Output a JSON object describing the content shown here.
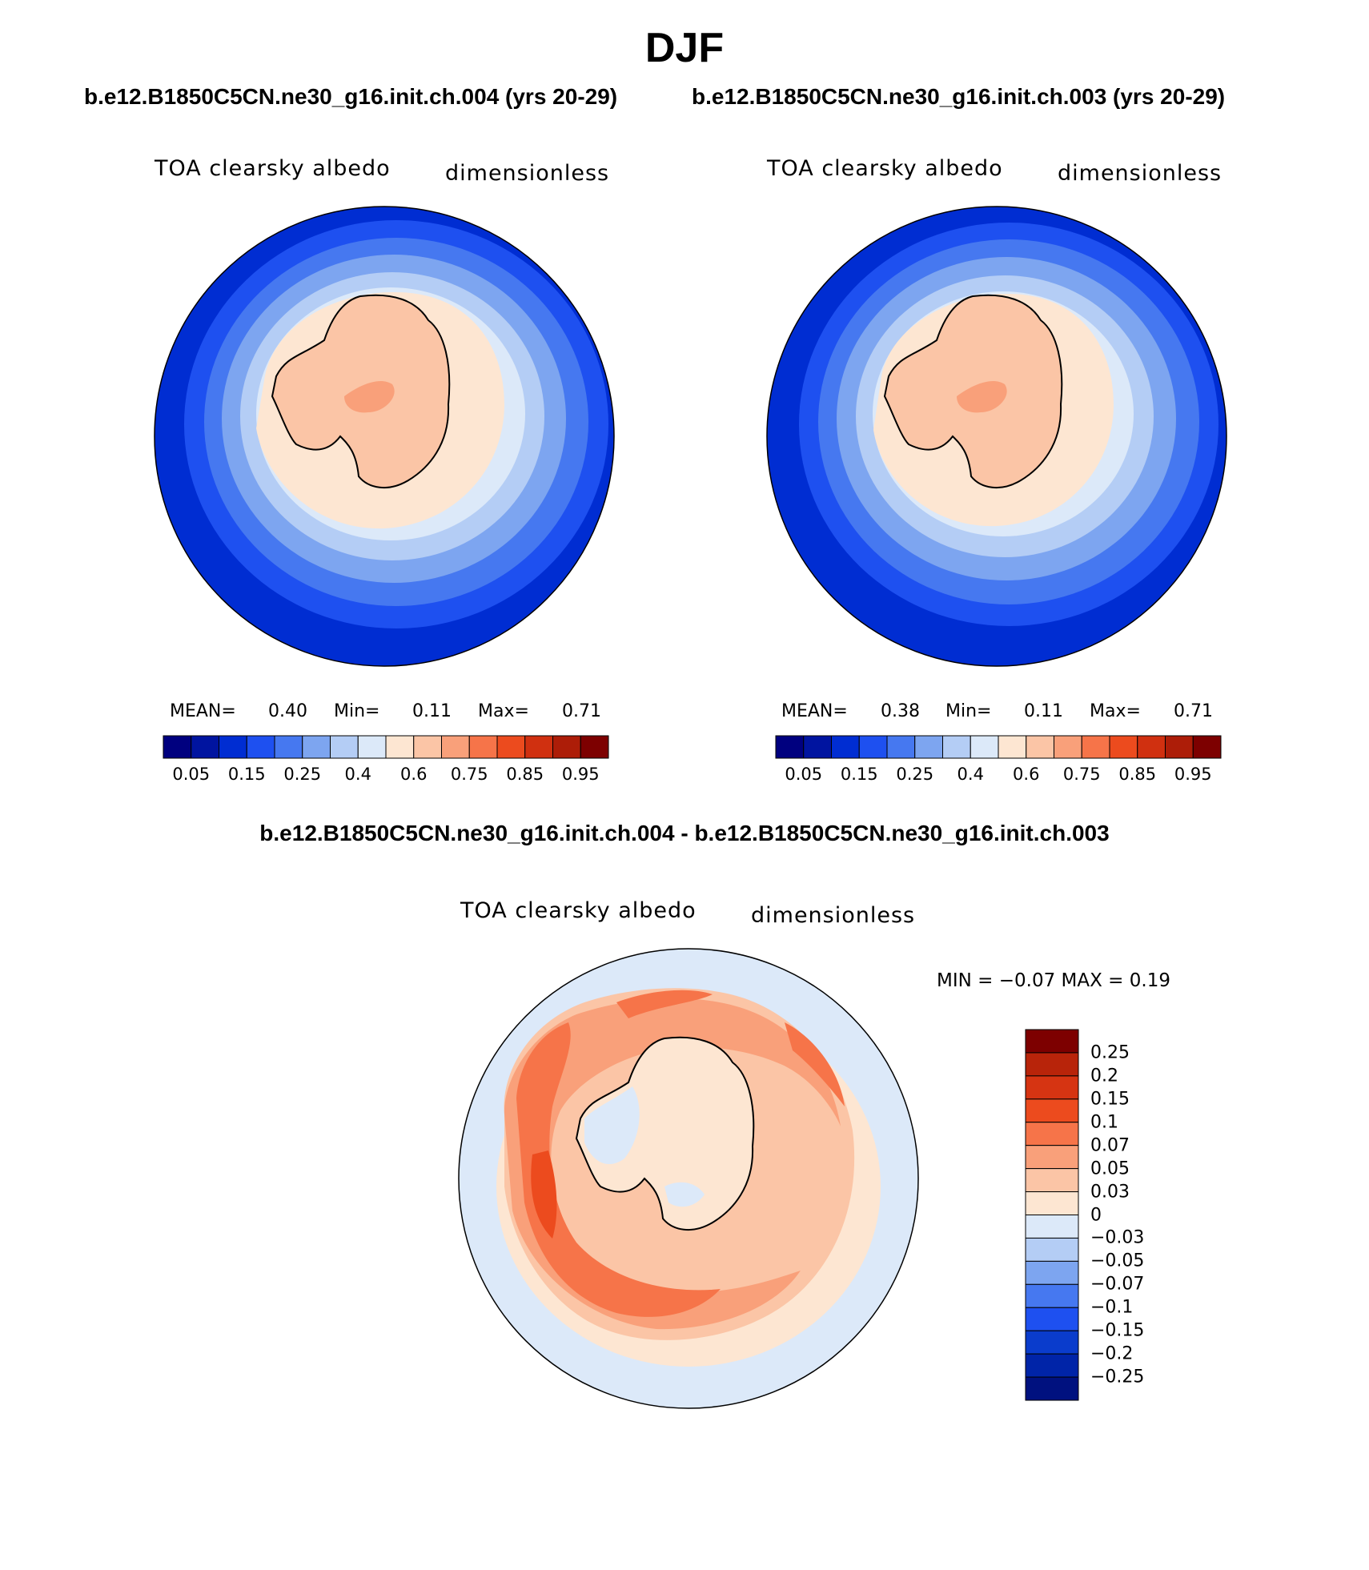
{
  "title": "DJF",
  "panels": [
    {
      "case": "b.e12.B1850C5CN.ne30_g16.init.ch.004 (yrs 20-29)",
      "variable": "TOA clearsky albedo",
      "units": "dimensionless",
      "stats": {
        "mean_label": "MEAN=",
        "mean": "0.40",
        "min_label": "Min=",
        "min": "0.11",
        "max_label": "Max=",
        "max": "0.71"
      }
    },
    {
      "case": "b.e12.B1850C5CN.ne30_g16.init.ch.003 (yrs 20-29)",
      "variable": "TOA clearsky albedo",
      "units": "dimensionless",
      "stats": {
        "mean_label": "MEAN=",
        "mean": "0.38",
        "min_label": "Min=",
        "min": "0.11",
        "max_label": "Max=",
        "max": "0.71"
      }
    }
  ],
  "difference": {
    "title": "b.e12.B1850C5CN.ne30_g16.init.ch.004 - b.e12.B1850C5CN.ne30_g16.init.ch.003",
    "variable": "TOA clearsky albedo",
    "units": "dimensionless",
    "minmax": "MIN =   −0.07  MAX =     0.19"
  },
  "colorbar_main": {
    "colors": [
      "#00007f",
      "#0014a0",
      "#002dd2",
      "#1e50f0",
      "#4678f0",
      "#7da5f0",
      "#b4cdf5",
      "#dce9f9",
      "#fde6d2",
      "#fbc5a6",
      "#f9a07a",
      "#f67449",
      "#ec4b1e",
      "#d03010",
      "#ad1d08",
      "#7d0000"
    ],
    "tick_labels": [
      "0.05",
      "0.15",
      "0.25",
      "0.4",
      "0.6",
      "0.75",
      "0.85",
      "0.95"
    ]
  },
  "colorbar_diff": {
    "colors": [
      "#7d0000",
      "#b8240a",
      "#d63412",
      "#ec4b1e",
      "#f67449",
      "#f9a07a",
      "#fbc5a6",
      "#fde6d2",
      "#dce9f9",
      "#b4cdf5",
      "#7da5f0",
      "#4678f0",
      "#1e50f0",
      "#0a3ccc",
      "#0024a8",
      "#00117f"
    ],
    "tick_labels": [
      "0.25",
      "0.2",
      "0.15",
      "0.1",
      "0.07",
      "0.05",
      "0.03",
      "0",
      "−0.03",
      "−0.05",
      "−0.07",
      "−0.1",
      "−0.15",
      "−0.2",
      "−0.25"
    ]
  },
  "icons": {
    "map_projection": "south-polar-stereographic-map",
    "continent": "antarctica-coastline"
  }
}
